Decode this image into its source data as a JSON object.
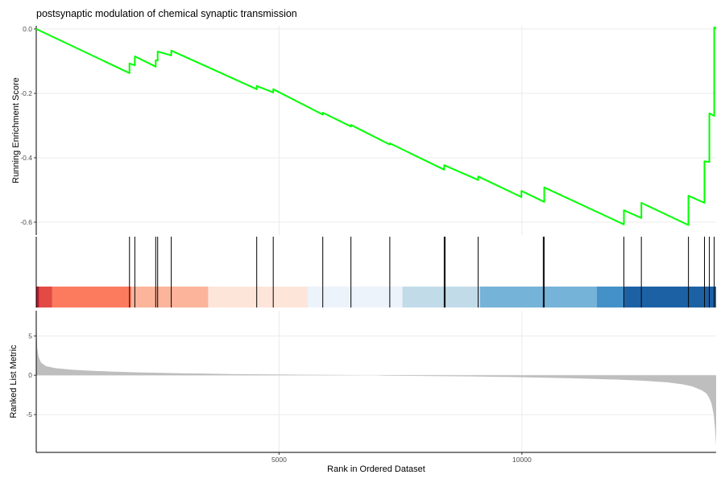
{
  "chart_data": {
    "type": "line",
    "title": "postsynaptic modulation of chemical synaptic transmission",
    "xlabel": "Rank in Ordered Dataset",
    "xlim": [
      0,
      14000
    ],
    "x_ticks": [
      5000,
      10000
    ],
    "x_tick_labels": [
      "5000",
      "10000"
    ],
    "grid": true,
    "colors": {
      "running_score": "#00ff00",
      "hits": "#000000",
      "metric_fill": "#bebebe"
    },
    "panels": [
      {
        "name": "running-enrichment-score",
        "ylabel": "Running Enrichment Score",
        "ylim": [
          -0.64,
          0.01
        ],
        "y_ticks": [
          0.0,
          -0.2,
          -0.4,
          -0.6
        ],
        "y_tick_labels": [
          "0.0",
          "-0.2",
          "-0.4",
          "-0.6"
        ],
        "series": [
          {
            "x": [
              0,
              1920,
              1920,
              2030,
              2030,
              2460,
              2460,
              2500,
              2500,
              2780,
              2780,
              4540,
              4540,
              4880,
              4880,
              5900,
              5900,
              6480,
              6480,
              7280,
              7280,
              8400,
              8400,
              9100,
              9100,
              9990,
              9990,
              10460,
              10460,
              12100,
              12100,
              12460,
              12460,
              13430,
              13430,
              13760,
              13760,
              13860,
              13860,
              13960,
              13960,
              14000
            ],
            "y": [
              0.0,
              -0.137,
              -0.107,
              -0.113,
              -0.085,
              -0.117,
              -0.097,
              -0.098,
              -0.07,
              -0.082,
              -0.067,
              -0.187,
              -0.177,
              -0.197,
              -0.187,
              -0.266,
              -0.26,
              -0.303,
              -0.298,
              -0.359,
              -0.355,
              -0.437,
              -0.423,
              -0.469,
              -0.458,
              -0.522,
              -0.503,
              -0.537,
              -0.492,
              -0.607,
              -0.563,
              -0.587,
              -0.54,
              -0.609,
              -0.518,
              -0.54,
              -0.411,
              -0.413,
              -0.262,
              -0.27,
              0.005,
              0.002
            ]
          }
        ]
      },
      {
        "name": "gene-hits",
        "hit_positions": [
          1920,
          2030,
          2460,
          2500,
          2780,
          4540,
          4880,
          5900,
          6480,
          7280,
          8400,
          8420,
          9100,
          10440,
          10460,
          12100,
          12460,
          13430,
          13760,
          13860,
          13960
        ],
        "bands": [
          {
            "from": 0,
            "to": 60,
            "color": "#b2182b"
          },
          {
            "from": 60,
            "to": 330,
            "color": "#e34a44"
          },
          {
            "from": 330,
            "to": 1960,
            "color": "#fc7b5f"
          },
          {
            "from": 1960,
            "to": 3540,
            "color": "#fcb49b"
          },
          {
            "from": 3540,
            "to": 5590,
            "color": "#fee5da"
          },
          {
            "from": 5590,
            "to": 7540,
            "color": "#edf3fb"
          },
          {
            "from": 7540,
            "to": 9140,
            "color": "#c2dbe8"
          },
          {
            "from": 9140,
            "to": 11540,
            "color": "#76b3d9"
          },
          {
            "from": 11540,
            "to": 12110,
            "color": "#4491c7"
          },
          {
            "from": 12110,
            "to": 14000,
            "color": "#1d61a5"
          }
        ]
      },
      {
        "name": "ranked-list-metric",
        "type": "area",
        "ylabel": "Ranked List Metric",
        "ylim": [
          -9.8,
          8.2
        ],
        "y_ticks": [
          5,
          0,
          -5
        ],
        "y_tick_labels": [
          "5",
          "0",
          "-5"
        ],
        "series": [
          {
            "x": [
              0,
              20,
              50,
              100,
              200,
              400,
              700,
              1000,
              1500,
              2000,
              3000,
              4000,
              5000,
              6000,
              6800,
              7000,
              7200,
              8000,
              9000,
              10000,
              11000,
              12000,
              12500,
              13000,
              13300,
              13500,
              13700,
              13800,
              13850,
              13900,
              13950,
              13980,
              14000
            ],
            "y": [
              7.0,
              3.5,
              2.3,
              1.6,
              1.15,
              0.9,
              0.72,
              0.6,
              0.48,
              0.38,
              0.25,
              0.15,
              0.09,
              0.04,
              0.0,
              -0.02,
              -0.05,
              -0.09,
              -0.15,
              -0.25,
              -0.38,
              -0.55,
              -0.7,
              -0.9,
              -1.15,
              -1.4,
              -1.9,
              -2.3,
              -2.8,
              -3.5,
              -5.0,
              -7.0,
              -9.0
            ]
          }
        ]
      }
    ]
  }
}
